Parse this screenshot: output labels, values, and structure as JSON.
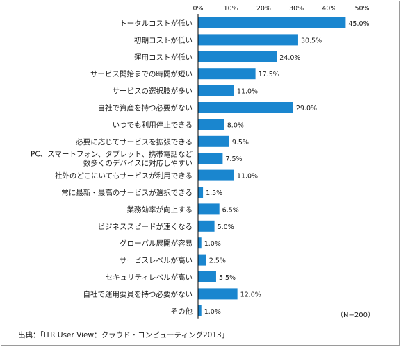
{
  "chart_data": {
    "type": "bar",
    "orientation": "horizontal",
    "categories": [
      [
        "トータルコストが低い"
      ],
      [
        "初期コストが低い"
      ],
      [
        "運用コストが低い"
      ],
      [
        "サービス開始までの時間が短い"
      ],
      [
        "サービスの選択肢が多い"
      ],
      [
        "自社で資産を持つ必要がない"
      ],
      [
        "いつでも利用停止できる"
      ],
      [
        "必要に応じてサービスを拡張できる"
      ],
      [
        "PC、スマートフォン、タブレット、携帯電話など",
        "数多くのデバイスに対応しやすい"
      ],
      [
        "社外のどこにいてもサービスが利用できる"
      ],
      [
        "常に最新・最高のサービスが選択できる"
      ],
      [
        "業務効率が向上する"
      ],
      [
        "ビジネススピードが速くなる"
      ],
      [
        "グローバル展開が容易"
      ],
      [
        "サービスレベルが高い"
      ],
      [
        "セキュリティレベルが高い"
      ],
      [
        "自社で運用要員を持つ必要がない"
      ],
      [
        "その他"
      ]
    ],
    "values": [
      45.0,
      30.5,
      24.0,
      17.5,
      11.0,
      29.0,
      8.0,
      9.5,
      7.5,
      11.0,
      1.5,
      6.5,
      5.0,
      1.0,
      2.5,
      5.5,
      12.0,
      1.0
    ],
    "value_labels": [
      "45.0%",
      "30.5%",
      "24.0%",
      "17.5%",
      "11.0%",
      "29.0%",
      "8.0%",
      "9.5%",
      "7.5%",
      "11.0%",
      "1.5%",
      "6.5%",
      "5.0%",
      "1.0%",
      "2.5%",
      "5.5%",
      "12.0%",
      "1.0%"
    ],
    "xlim": [
      0,
      50
    ],
    "xticks": [
      "0%",
      "10%",
      "20%",
      "30%",
      "40%",
      "50%"
    ],
    "axis_position": "top",
    "grid": false,
    "bar_color": "#1a86cf",
    "title": "",
    "xlabel": "",
    "ylabel": ""
  },
  "sample_note": "（N=200）",
  "source": "出典：「ITR User View：クラウド・コンピューティング2013」"
}
